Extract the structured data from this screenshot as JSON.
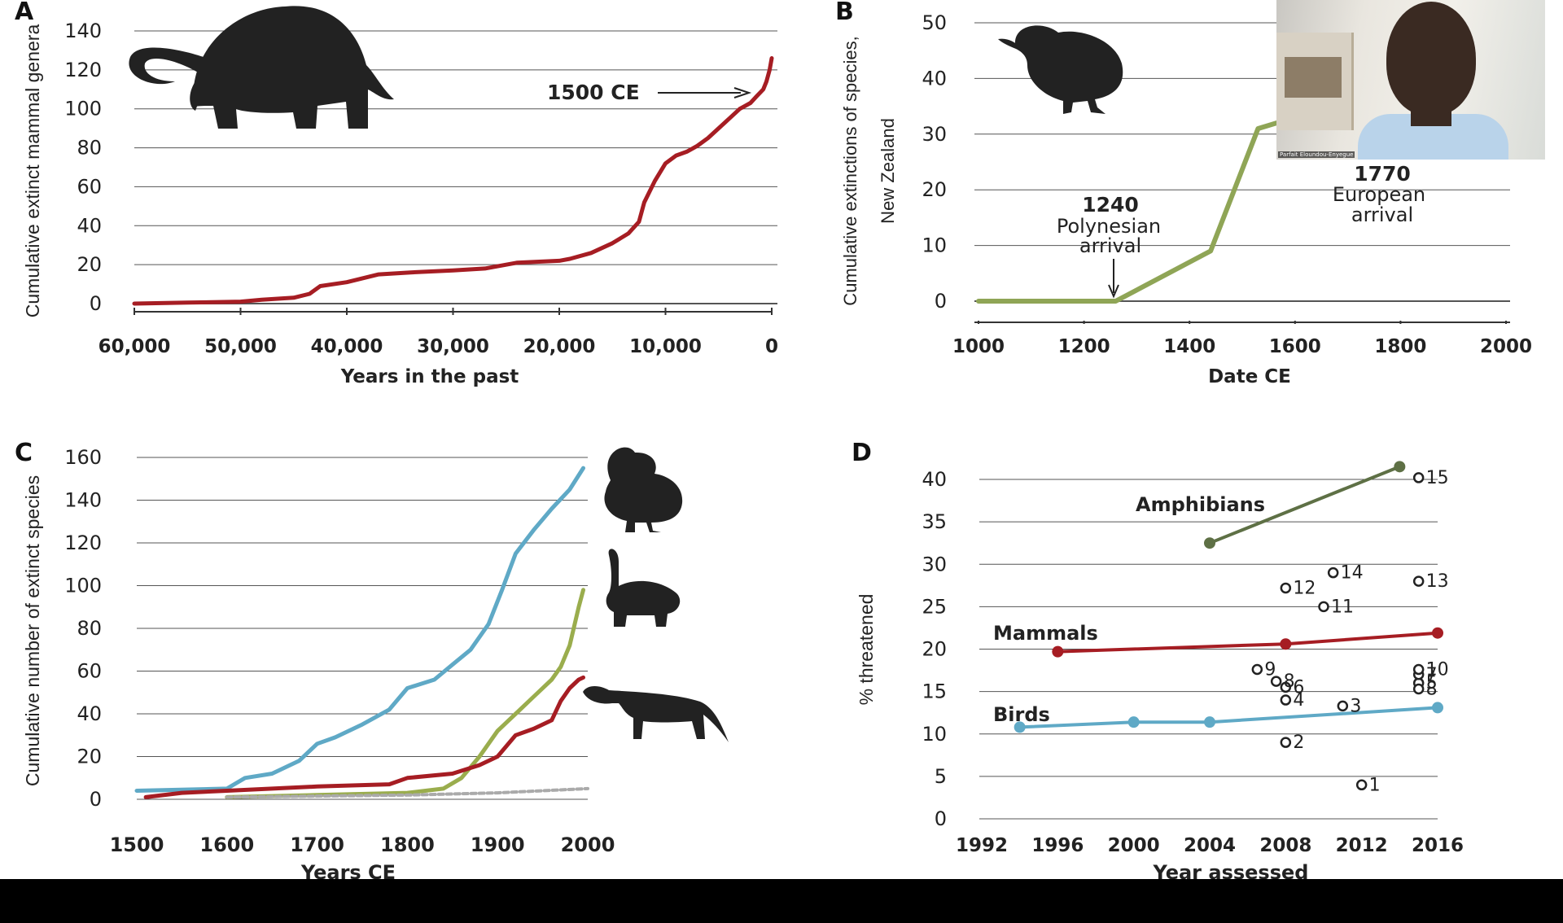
{
  "panels": {
    "A": {
      "letter": "A"
    },
    "B": {
      "letter": "B"
    },
    "C": {
      "letter": "C"
    },
    "D": {
      "letter": "D"
    }
  },
  "colors": {
    "mammal_red": "#a61d23",
    "nz_green": "#8fa556",
    "bird_blue": "#5fa9c6",
    "amphib_green": "#5e7045",
    "reptile_olive": "#9aad4d",
    "grey_dash": "#aaaaaa",
    "silhouette": "#222222",
    "grid": "#555555"
  },
  "icons": {
    "panel_a": "mammoth-silhouette-icon",
    "panel_b": "moa-bird-silhouette-icon",
    "panel_c_1": "dodo-silhouette-icon",
    "panel_c_2": "tortoise-silhouette-icon",
    "panel_c_3": "thylacine-silhouette-icon"
  },
  "annotations": {
    "a_1500": "1500 CE",
    "b_1240_year": "1240",
    "b_1240_l1": "Polynesian",
    "b_1240_l2": "arrival",
    "b_1770_year": "1770",
    "b_1770_l1": "European",
    "b_1770_l2": "arrival"
  },
  "webcam": {
    "name": "Parfait Eloundou-Enyegue"
  },
  "chart_data": [
    {
      "panel": "A",
      "type": "line",
      "xlabel": "Years in the past",
      "ylabel": "Cumulative extinct mammal genera",
      "xlim": [
        60000,
        0
      ],
      "ylim": [
        0,
        140
      ],
      "xticks": [
        60000,
        50000,
        40000,
        30000,
        20000,
        10000,
        0
      ],
      "xtick_labels": [
        "60,000",
        "50,000",
        "40,000",
        "30,000",
        "20,000",
        "10,000",
        "0"
      ],
      "yticks": [
        0,
        20,
        40,
        60,
        80,
        100,
        120,
        140
      ],
      "grid": true,
      "series": [
        {
          "x": [
            60000,
            55000,
            50000,
            48000,
            45000,
            43500,
            42500,
            40000,
            37000,
            34000,
            30000,
            27000,
            24000,
            20000,
            19000,
            17000,
            15000,
            13500,
            12500,
            12000,
            11000,
            10000,
            9000,
            8000,
            7000,
            6000,
            5000,
            4000,
            3000,
            2000,
            1500,
            800,
            500,
            200,
            0
          ],
          "y": [
            0,
            0.5,
            1,
            2,
            3,
            5,
            9,
            11,
            15,
            16,
            17,
            18,
            21,
            22,
            23,
            26,
            31,
            36,
            42,
            52,
            63,
            72,
            76,
            78,
            81,
            85,
            90,
            95,
            100,
            103,
            106,
            110,
            114,
            120,
            126
          ]
        }
      ]
    },
    {
      "panel": "B",
      "type": "line",
      "xlabel": "Date CE",
      "ylabel": "Cumulative extinctions of species, New Zealand",
      "xlim": [
        1000,
        2000
      ],
      "ylim": [
        0,
        50
      ],
      "xticks": [
        1000,
        1200,
        1400,
        1600,
        1800,
        2000
      ],
      "yticks": [
        0,
        10,
        20,
        30,
        40,
        50
      ],
      "grid": true,
      "series": [
        {
          "x": [
            1000,
            1260,
            1440,
            1530,
            1600
          ],
          "y": [
            0,
            0,
            9,
            31,
            33
          ]
        }
      ]
    },
    {
      "panel": "C",
      "type": "line",
      "xlabel": "Years CE",
      "ylabel": "Cumulative number of extinct species",
      "xlim": [
        1500,
        2000
      ],
      "ylim": [
        0,
        160
      ],
      "xticks": [
        1500,
        1600,
        1700,
        1800,
        1900,
        2000
      ],
      "yticks": [
        0,
        20,
        40,
        60,
        80,
        100,
        120,
        140,
        160
      ],
      "grid": true,
      "series": [
        {
          "color": "#5fa9c6",
          "x": [
            1500,
            1600,
            1620,
            1650,
            1680,
            1700,
            1720,
            1750,
            1780,
            1800,
            1830,
            1850,
            1870,
            1890,
            1905,
            1920,
            1940,
            1960,
            1980,
            1995
          ],
          "y": [
            4,
            5,
            10,
            12,
            18,
            26,
            29,
            35,
            42,
            52,
            56,
            63,
            70,
            82,
            98,
            115,
            126,
            136,
            145,
            155
          ]
        },
        {
          "color": "#9aad4d",
          "x": [
            1600,
            1700,
            1800,
            1840,
            1860,
            1880,
            1900,
            1920,
            1940,
            1960,
            1970,
            1980,
            1990,
            1995
          ],
          "y": [
            1,
            2,
            3,
            5,
            10,
            20,
            32,
            40,
            48,
            56,
            62,
            72,
            90,
            98
          ]
        },
        {
          "color": "#a61d23",
          "x": [
            1510,
            1550,
            1600,
            1700,
            1780,
            1800,
            1850,
            1880,
            1900,
            1920,
            1940,
            1960,
            1970,
            1980,
            1990,
            1995
          ],
          "y": [
            1,
            3,
            4,
            6,
            7,
            10,
            12,
            16,
            20,
            30,
            33,
            37,
            46,
            52,
            56,
            57
          ]
        },
        {
          "color": "#aaaaaa",
          "dashed": true,
          "x": [
            1600,
            1700,
            1800,
            1900,
            2000
          ],
          "y": [
            1,
            1.5,
            2,
            3,
            5
          ]
        }
      ]
    },
    {
      "panel": "D",
      "type": "line",
      "xlabel": "Year assessed",
      "ylabel": "% threatened",
      "xlim": [
        1992,
        2016
      ],
      "ylim": [
        0,
        40
      ],
      "xticks": [
        1992,
        1996,
        2000,
        2004,
        2008,
        2012,
        2016
      ],
      "yticks": [
        0,
        5,
        10,
        15,
        20,
        25,
        30,
        35,
        40
      ],
      "grid": true,
      "series": [
        {
          "name": "Amphibians",
          "color": "#5e7045",
          "x": [
            2004,
            2014
          ],
          "y": [
            32.5,
            41.5
          ]
        },
        {
          "name": "Mammals",
          "color": "#a61d23",
          "x": [
            1996,
            2008,
            2016
          ],
          "y": [
            19.7,
            20.6,
            21.9
          ]
        },
        {
          "name": "Birds",
          "color": "#5fa9c6",
          "x": [
            1994,
            2000,
            2004,
            2016
          ],
          "y": [
            10.8,
            11.4,
            11.4,
            13.1
          ]
        }
      ],
      "points": [
        {
          "label": "1",
          "x": 2012,
          "y": 4
        },
        {
          "label": "2",
          "x": 2008,
          "y": 9
        },
        {
          "label": "3",
          "x": 2011,
          "y": 13.3
        },
        {
          "label": "4",
          "x": 2008,
          "y": 14
        },
        {
          "label": "5",
          "x": 2015,
          "y": 16
        },
        {
          "label": "6",
          "x": 2008,
          "y": 15.5
        },
        {
          "label": "7",
          "x": 2015,
          "y": 17
        },
        {
          "label": "8",
          "x": 2007.5,
          "y": 16.2
        },
        {
          "label": "8",
          "x": 2015,
          "y": 15.3
        },
        {
          "label": "9",
          "x": 2006.5,
          "y": 17.6
        },
        {
          "label": "10",
          "x": 2015,
          "y": 17.6
        },
        {
          "label": "11",
          "x": 2010,
          "y": 25
        },
        {
          "label": "12",
          "x": 2008,
          "y": 27.2
        },
        {
          "label": "13",
          "x": 2015,
          "y": 28
        },
        {
          "label": "14",
          "x": 2010.5,
          "y": 29
        },
        {
          "label": "15",
          "x": 2015,
          "y": 40.2
        }
      ]
    }
  ]
}
